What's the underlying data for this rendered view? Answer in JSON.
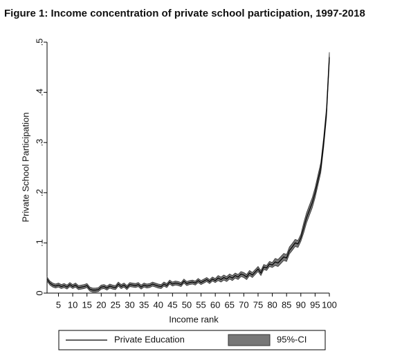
{
  "chart_data": {
    "type": "line",
    "title": "Figure 1: Income concentration of private school participation, 1997-2018",
    "x_label": "Income rank",
    "y_label": "Private School Participation",
    "x": [
      1,
      2,
      3,
      4,
      5,
      6,
      7,
      8,
      9,
      10,
      11,
      12,
      13,
      14,
      15,
      16,
      17,
      18,
      19,
      20,
      21,
      22,
      23,
      24,
      25,
      26,
      27,
      28,
      29,
      30,
      31,
      32,
      33,
      34,
      35,
      36,
      37,
      38,
      39,
      40,
      41,
      42,
      43,
      44,
      45,
      46,
      47,
      48,
      49,
      50,
      51,
      52,
      53,
      54,
      55,
      56,
      57,
      58,
      59,
      60,
      61,
      62,
      63,
      64,
      65,
      66,
      67,
      68,
      69,
      70,
      71,
      72,
      73,
      74,
      75,
      76,
      77,
      78,
      79,
      80,
      81,
      82,
      83,
      84,
      85,
      86,
      87,
      88,
      89,
      90,
      91,
      92,
      93,
      94,
      95,
      96,
      97,
      98,
      99,
      100
    ],
    "series": [
      {
        "name": "Private Education",
        "color": "#000000",
        "values": [
          0.028,
          0.02,
          0.016,
          0.014,
          0.016,
          0.013,
          0.015,
          0.012,
          0.017,
          0.013,
          0.016,
          0.011,
          0.012,
          0.013,
          0.015,
          0.008,
          0.006,
          0.006,
          0.007,
          0.012,
          0.013,
          0.01,
          0.014,
          0.012,
          0.011,
          0.018,
          0.013,
          0.016,
          0.011,
          0.017,
          0.016,
          0.015,
          0.017,
          0.012,
          0.016,
          0.014,
          0.015,
          0.018,
          0.016,
          0.014,
          0.013,
          0.018,
          0.015,
          0.022,
          0.018,
          0.02,
          0.019,
          0.017,
          0.024,
          0.019,
          0.021,
          0.022,
          0.02,
          0.025,
          0.021,
          0.024,
          0.027,
          0.023,
          0.028,
          0.025,
          0.03,
          0.027,
          0.031,
          0.028,
          0.033,
          0.03,
          0.035,
          0.032,
          0.038,
          0.036,
          0.032,
          0.04,
          0.036,
          0.042,
          0.048,
          0.04,
          0.052,
          0.05,
          0.058,
          0.056,
          0.062,
          0.06,
          0.066,
          0.072,
          0.07,
          0.085,
          0.092,
          0.1,
          0.098,
          0.11,
          0.13,
          0.15,
          0.165,
          0.18,
          0.2,
          0.225,
          0.25,
          0.3,
          0.36,
          0.47
        ]
      },
      {
        "name": "95%-CI",
        "color": "#777777",
        "values": [
          0.004,
          0.004,
          0.004,
          0.004,
          0.004,
          0.004,
          0.004,
          0.004,
          0.004,
          0.004,
          0.004,
          0.004,
          0.004,
          0.004,
          0.004,
          0.004,
          0.004,
          0.004,
          0.004,
          0.004,
          0.004,
          0.004,
          0.004,
          0.004,
          0.004,
          0.004,
          0.004,
          0.004,
          0.004,
          0.004,
          0.004,
          0.004,
          0.004,
          0.004,
          0.004,
          0.004,
          0.004,
          0.004,
          0.004,
          0.004,
          0.004,
          0.004,
          0.004,
          0.004,
          0.004,
          0.004,
          0.004,
          0.004,
          0.004,
          0.004,
          0.004,
          0.004,
          0.004,
          0.004,
          0.004,
          0.004,
          0.004,
          0.004,
          0.004,
          0.004,
          0.005,
          0.005,
          0.005,
          0.005,
          0.005,
          0.005,
          0.005,
          0.005,
          0.005,
          0.005,
          0.005,
          0.005,
          0.005,
          0.005,
          0.005,
          0.005,
          0.005,
          0.005,
          0.005,
          0.005,
          0.007,
          0.007,
          0.007,
          0.007,
          0.007,
          0.007,
          0.007,
          0.007,
          0.007,
          0.007,
          0.01,
          0.01,
          0.01,
          0.01,
          0.01,
          0.01,
          0.01,
          0.01,
          0.01,
          0.01
        ]
      }
    ],
    "xlim": [
      1,
      100
    ],
    "xticks": [
      5,
      10,
      15,
      20,
      25,
      30,
      35,
      40,
      45,
      50,
      55,
      60,
      65,
      70,
      75,
      80,
      85,
      90,
      95,
      100
    ],
    "ylim": [
      0,
      0.5
    ],
    "yticks": [
      0,
      {
        "value": 0.1,
        "label": ".1"
      },
      {
        "value": 0.2,
        "label": ".2"
      },
      {
        "value": 0.3,
        "label": ".3"
      },
      {
        "value": 0.4,
        "label": ".4"
      },
      {
        "value": 0.5,
        "label": ".5"
      }
    ],
    "grid": false,
    "legend": "bottom"
  }
}
